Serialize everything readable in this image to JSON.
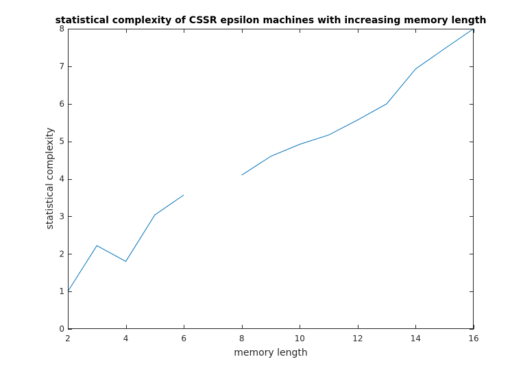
{
  "chart_data": {
    "type": "line",
    "title": "statistical complexity of CSSR epsilon machines with increasing memory length",
    "xlabel": "memory length",
    "ylabel": "statistical complexity",
    "xlim": [
      2,
      16
    ],
    "ylim": [
      0,
      8
    ],
    "xticks": [
      2,
      4,
      6,
      8,
      10,
      12,
      14,
      16
    ],
    "yticks": [
      0,
      1,
      2,
      3,
      4,
      5,
      6,
      7,
      8
    ],
    "grid": false,
    "legend": "none",
    "series": [
      {
        "color": "#0072bd",
        "segments": [
          {
            "x": [
              2,
              3,
              4,
              5,
              6
            ],
            "y": [
              1.0,
              2.22,
              1.8,
              3.04,
              3.57
            ]
          },
          {
            "x": [
              8,
              9,
              10,
              11,
              12,
              13,
              14,
              15,
              16
            ],
            "y": [
              4.1,
              4.6,
              4.92,
              5.17,
              5.57,
              6.0,
              6.93,
              7.47,
              8.0
            ]
          }
        ]
      }
    ]
  }
}
